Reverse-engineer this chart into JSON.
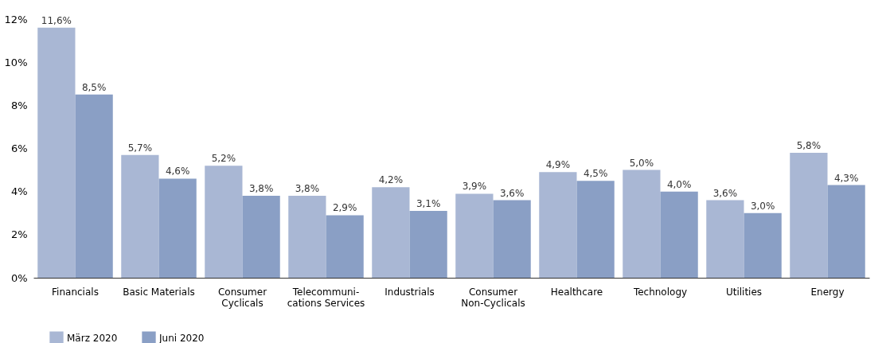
{
  "chart_data": {
    "type": "bar",
    "categories": [
      "Financials",
      "Basic Materials",
      "Consumer\nCyclicals",
      "Telecommuni-\ncations Services",
      "Industrials",
      "Consumer\nNon-Cyclicals",
      "Healthcare",
      "Technology",
      "Utilities",
      "Energy"
    ],
    "series": [
      {
        "name": "März 2020",
        "color": "#a9b7d4",
        "values": [
          11.6,
          5.7,
          5.2,
          3.8,
          4.2,
          3.9,
          4.9,
          5.0,
          3.6,
          5.8
        ],
        "value_labels": [
          "11,6%",
          "5,7%",
          "5,2%",
          "3,8%",
          "4,2%",
          "3,9%",
          "4,9%",
          "5,0%",
          "3,6%",
          "5,8%"
        ]
      },
      {
        "name": "Juni 2020",
        "color": "#8a9fc5",
        "values": [
          8.5,
          4.6,
          3.8,
          2.9,
          3.1,
          3.6,
          4.5,
          4.0,
          3.0,
          4.3
        ],
        "value_labels": [
          "8,5%",
          "4,6%",
          "3,8%",
          "2,9%",
          "3,1%",
          "3,6%",
          "4,5%",
          "4,0%",
          "3,0%",
          "4,3%"
        ]
      }
    ],
    "ylim": [
      0,
      12
    ],
    "yticks": [
      {
        "value": 0,
        "label": "0%"
      },
      {
        "value": 2,
        "label": "2%"
      },
      {
        "value": 4,
        "label": "4%"
      },
      {
        "value": 6,
        "label": "6%"
      },
      {
        "value": 8,
        "label": "8%"
      },
      {
        "value": 10,
        "label": "10%"
      },
      {
        "value": 12,
        "label": "12%"
      }
    ],
    "grid": false,
    "legend": "bottom left"
  }
}
